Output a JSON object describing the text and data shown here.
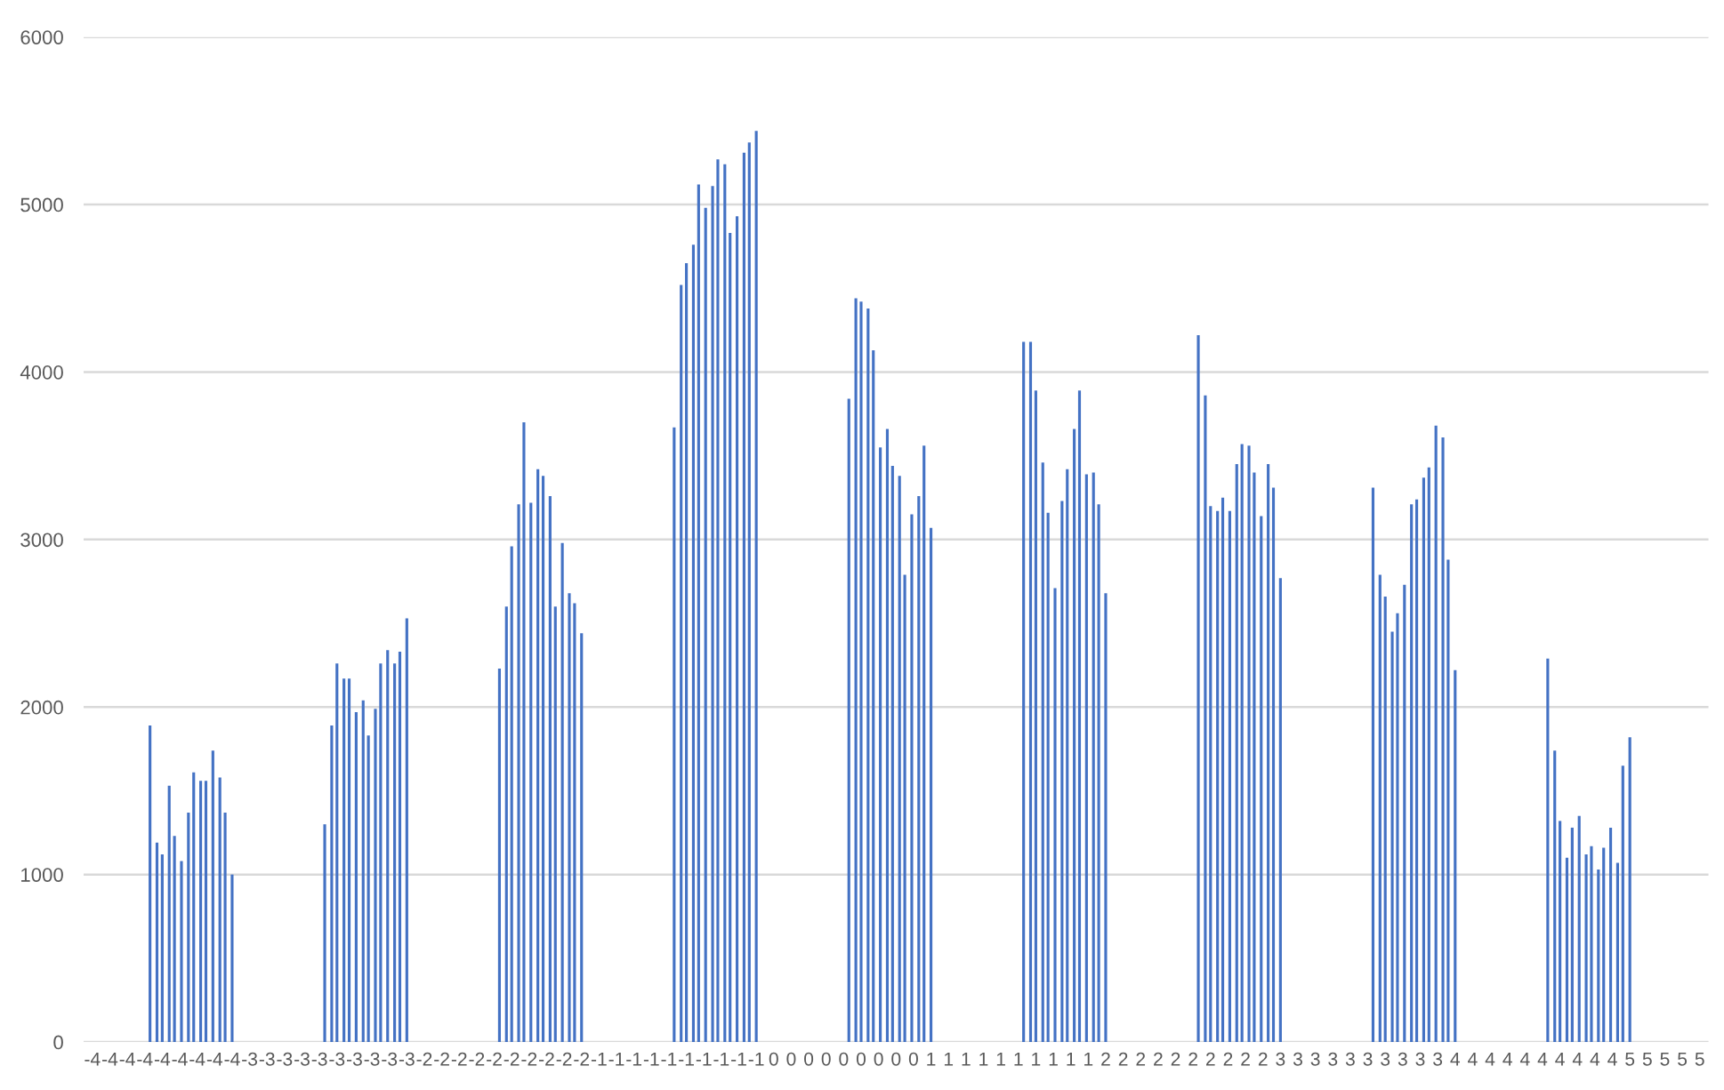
{
  "chart_data": {
    "type": "bar",
    "color": "#4472c4",
    "ylim": [
      0,
      6000
    ],
    "yticks": [
      0,
      1000,
      2000,
      3000,
      4000,
      5000,
      6000
    ],
    "xlim": [
      -4.35,
      4.95
    ],
    "grid": "y",
    "legend": false,
    "x": [
      -3.97,
      -3.93,
      -3.9,
      -3.86,
      -3.83,
      -3.79,
      -3.75,
      -3.72,
      -3.68,
      -3.65,
      -3.61,
      -3.57,
      -3.54,
      -3.5,
      -2.97,
      -2.93,
      -2.9,
      -2.86,
      -2.83,
      -2.79,
      -2.75,
      -2.72,
      -2.68,
      -2.65,
      -2.61,
      -2.57,
      -2.54,
      -2.5,
      -1.97,
      -1.93,
      -1.9,
      -1.86,
      -1.83,
      -1.79,
      -1.75,
      -1.72,
      -1.68,
      -1.65,
      -1.61,
      -1.57,
      -1.54,
      -1.5,
      -0.97,
      -0.93,
      -0.9,
      -0.86,
      -0.83,
      -0.79,
      -0.75,
      -0.72,
      -0.68,
      -0.65,
      -0.61,
      -0.57,
      -0.54,
      -0.5,
      0.03,
      0.07,
      0.1,
      0.14,
      0.17,
      0.21,
      0.25,
      0.28,
      0.32,
      0.35,
      0.39,
      0.43,
      0.46,
      0.5,
      1.03,
      1.07,
      1.1,
      1.14,
      1.17,
      1.21,
      1.25,
      1.28,
      1.32,
      1.35,
      1.39,
      1.43,
      1.46,
      1.5,
      2.03,
      2.07,
      2.1,
      2.14,
      2.17,
      2.21,
      2.25,
      2.28,
      2.32,
      2.35,
      2.39,
      2.43,
      2.46,
      2.5,
      3.03,
      3.07,
      3.1,
      3.14,
      3.17,
      3.21,
      3.25,
      3.28,
      3.32,
      3.35,
      3.39,
      3.43,
      3.46,
      3.5,
      4.03,
      4.07,
      4.1,
      4.14,
      4.17,
      4.21,
      4.25,
      4.28,
      4.32,
      4.35,
      4.39,
      4.43,
      4.46,
      4.5
    ],
    "values": [
      1890,
      1190,
      1120,
      1530,
      1230,
      1080,
      1370,
      1610,
      1560,
      1560,
      1740,
      1580,
      1370,
      1000,
      1300,
      1890,
      2260,
      2170,
      2170,
      1970,
      2040,
      1830,
      1990,
      2260,
      2340,
      2260,
      2330,
      2530,
      2230,
      2600,
      2960,
      3210,
      3700,
      3220,
      3420,
      3380,
      3260,
      2600,
      2980,
      2680,
      2620,
      2440,
      3670,
      4520,
      4650,
      4760,
      5120,
      4980,
      5110,
      5270,
      5240,
      4830,
      4930,
      5310,
      5370,
      5440,
      3840,
      4440,
      4420,
      4380,
      4130,
      3550,
      3660,
      3440,
      3380,
      2790,
      3150,
      3260,
      3560,
      3070,
      4180,
      4180,
      3890,
      3460,
      3160,
      2710,
      3230,
      3420,
      3660,
      3890,
      3390,
      3400,
      3210,
      2680,
      4220,
      3860,
      3200,
      3170,
      3250,
      3170,
      3450,
      3570,
      3560,
      3400,
      3140,
      3450,
      3310,
      2770,
      3310,
      2790,
      2660,
      2450,
      2560,
      2730,
      3210,
      3240,
      3370,
      3430,
      3680,
      3610,
      2880,
      2220,
      2290,
      1740,
      1320,
      1100,
      1280,
      1350,
      1120,
      1170,
      1030,
      1160,
      1280,
      1070,
      1650,
      1820
    ],
    "xticks": [
      {
        "value": -4.3,
        "label": "-4"
      },
      {
        "value": -4.2,
        "label": "-4"
      },
      {
        "value": -4.1,
        "label": "-4"
      },
      {
        "value": -4.0,
        "label": "-4"
      },
      {
        "value": -3.9,
        "label": "-4"
      },
      {
        "value": -3.8,
        "label": "-4"
      },
      {
        "value": -3.7,
        "label": "-4"
      },
      {
        "value": -3.6,
        "label": "-4"
      },
      {
        "value": -3.5,
        "label": "-4"
      },
      {
        "value": -3.4,
        "label": "-3"
      },
      {
        "value": -3.3,
        "label": "-3"
      },
      {
        "value": -3.2,
        "label": "-3"
      },
      {
        "value": -3.1,
        "label": "-3"
      },
      {
        "value": -3.0,
        "label": "-3"
      },
      {
        "value": -2.9,
        "label": "-3"
      },
      {
        "value": -2.8,
        "label": "-3"
      },
      {
        "value": -2.7,
        "label": "-3"
      },
      {
        "value": -2.6,
        "label": "-3"
      },
      {
        "value": -2.5,
        "label": "-3"
      },
      {
        "value": -2.4,
        "label": "-2"
      },
      {
        "value": -2.3,
        "label": "-2"
      },
      {
        "value": -2.2,
        "label": "-2"
      },
      {
        "value": -2.1,
        "label": "-2"
      },
      {
        "value": -2.0,
        "label": "-2"
      },
      {
        "value": -1.9,
        "label": "-2"
      },
      {
        "value": -1.8,
        "label": "-2"
      },
      {
        "value": -1.7,
        "label": "-2"
      },
      {
        "value": -1.6,
        "label": "-2"
      },
      {
        "value": -1.5,
        "label": "-2"
      },
      {
        "value": -1.4,
        "label": "-1"
      },
      {
        "value": -1.3,
        "label": "-1"
      },
      {
        "value": -1.2,
        "label": "-1"
      },
      {
        "value": -1.1,
        "label": "-1"
      },
      {
        "value": -1.0,
        "label": "-1"
      },
      {
        "value": -0.9,
        "label": "-1"
      },
      {
        "value": -0.8,
        "label": "-1"
      },
      {
        "value": -0.7,
        "label": "-1"
      },
      {
        "value": -0.6,
        "label": "-1"
      },
      {
        "value": -0.5,
        "label": "-1"
      },
      {
        "value": -0.4,
        "label": "0"
      },
      {
        "value": -0.3,
        "label": "0"
      },
      {
        "value": -0.2,
        "label": "0"
      },
      {
        "value": -0.1,
        "label": "0"
      },
      {
        "value": 0.0,
        "label": "0"
      },
      {
        "value": 0.1,
        "label": "0"
      },
      {
        "value": 0.2,
        "label": "0"
      },
      {
        "value": 0.3,
        "label": "0"
      },
      {
        "value": 0.4,
        "label": "0"
      },
      {
        "value": 0.5,
        "label": "1"
      },
      {
        "value": 0.6,
        "label": "1"
      },
      {
        "value": 0.7,
        "label": "1"
      },
      {
        "value": 0.8,
        "label": "1"
      },
      {
        "value": 0.9,
        "label": "1"
      },
      {
        "value": 1.0,
        "label": "1"
      },
      {
        "value": 1.1,
        "label": "1"
      },
      {
        "value": 1.2,
        "label": "1"
      },
      {
        "value": 1.3,
        "label": "1"
      },
      {
        "value": 1.4,
        "label": "1"
      },
      {
        "value": 1.5,
        "label": "2"
      },
      {
        "value": 1.6,
        "label": "2"
      },
      {
        "value": 1.7,
        "label": "2"
      },
      {
        "value": 1.8,
        "label": "2"
      },
      {
        "value": 1.9,
        "label": "2"
      },
      {
        "value": 2.0,
        "label": "2"
      },
      {
        "value": 2.1,
        "label": "2"
      },
      {
        "value": 2.2,
        "label": "2"
      },
      {
        "value": 2.3,
        "label": "2"
      },
      {
        "value": 2.4,
        "label": "2"
      },
      {
        "value": 2.5,
        "label": "3"
      },
      {
        "value": 2.6,
        "label": "3"
      },
      {
        "value": 2.7,
        "label": "3"
      },
      {
        "value": 2.8,
        "label": "3"
      },
      {
        "value": 2.9,
        "label": "3"
      },
      {
        "value": 3.0,
        "label": "3"
      },
      {
        "value": 3.1,
        "label": "3"
      },
      {
        "value": 3.2,
        "label": "3"
      },
      {
        "value": 3.3,
        "label": "3"
      },
      {
        "value": 3.4,
        "label": "3"
      },
      {
        "value": 3.5,
        "label": "4"
      },
      {
        "value": 3.6,
        "label": "4"
      },
      {
        "value": 3.7,
        "label": "4"
      },
      {
        "value": 3.8,
        "label": "4"
      },
      {
        "value": 3.9,
        "label": "4"
      },
      {
        "value": 4.0,
        "label": "4"
      },
      {
        "value": 4.1,
        "label": "4"
      },
      {
        "value": 4.2,
        "label": "4"
      },
      {
        "value": 4.3,
        "label": "4"
      },
      {
        "value": 4.4,
        "label": "4"
      },
      {
        "value": 4.5,
        "label": "5"
      },
      {
        "value": 4.6,
        "label": "5"
      },
      {
        "value": 4.7,
        "label": "5"
      },
      {
        "value": 4.8,
        "label": "5"
      },
      {
        "value": 4.9,
        "label": "5"
      }
    ]
  }
}
